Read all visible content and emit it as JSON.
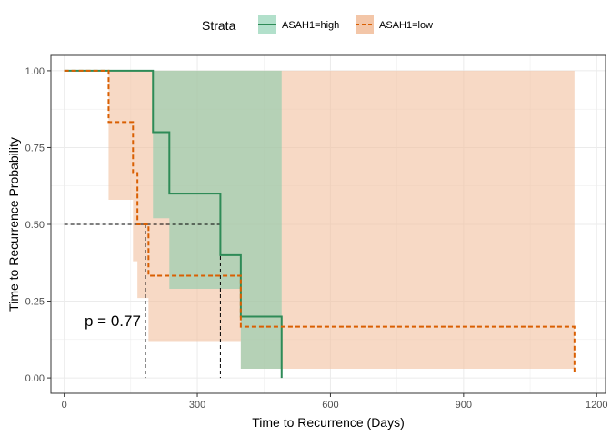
{
  "chart_data": {
    "type": "step",
    "xlabel": "Time to Recurrence (Days)",
    "ylabel": "Time to Recurrence Probability",
    "xlim": [
      -30,
      1220
    ],
    "ylim": [
      -0.05,
      1.05
    ],
    "xticks": [
      0,
      300,
      600,
      900,
      1200
    ],
    "yticks": [
      0.0,
      0.25,
      0.5,
      0.75,
      1.0
    ],
    "xtick_labels": [
      "0",
      "300",
      "600",
      "900",
      "1200"
    ],
    "ytick_labels": [
      "0.00",
      "0.25",
      "0.50",
      "0.75",
      "1.00"
    ],
    "grid": true,
    "legend": {
      "title": "Strata",
      "position": "top",
      "entries": [
        "ASAH1=high",
        "ASAH1=low"
      ]
    },
    "annotation": {
      "text": "p = 0.77",
      "x": 20,
      "y": 0.18
    },
    "median_lines": {
      "y": 0.5,
      "x_values": [
        183,
        352
      ]
    },
    "series": [
      {
        "name": "ASAH1=high",
        "color": "#2E8B57",
        "fill_color": "#7FCBA9",
        "dash": "solid",
        "x": [
          0,
          200,
          200,
          237,
          237,
          352,
          352,
          398,
          398,
          490,
          490
        ],
        "y": [
          1.0,
          1.0,
          0.8,
          0.8,
          0.6,
          0.6,
          0.4,
          0.4,
          0.2,
          0.2,
          0.0
        ],
        "ci_upper": [
          [
            0,
            1.0
          ],
          [
            200,
            1.0
          ],
          [
            490,
            1.0
          ]
        ],
        "ci_lower": [
          [
            0,
            1.0
          ],
          [
            200,
            1.0
          ],
          [
            200,
            0.52
          ],
          [
            237,
            0.52
          ],
          [
            237,
            0.29
          ],
          [
            398,
            0.29
          ],
          [
            398,
            0.03
          ],
          [
            490,
            0.03
          ]
        ]
      },
      {
        "name": "ASAH1=low",
        "color": "#D95F02",
        "fill_color": "#F2C09E",
        "dash": "dashed",
        "x": [
          0,
          100,
          100,
          155,
          155,
          165,
          165,
          190,
          190,
          398,
          398,
          1150,
          1150
        ],
        "y": [
          1.0,
          1.0,
          0.833,
          0.833,
          0.667,
          0.667,
          0.5,
          0.5,
          0.333,
          0.333,
          0.167,
          0.167,
          0.01
        ],
        "ci_upper": [
          [
            0,
            1.0
          ],
          [
            1150,
            1.0
          ]
        ],
        "ci_lower": [
          [
            0,
            1.0
          ],
          [
            100,
            1.0
          ],
          [
            100,
            0.58
          ],
          [
            155,
            0.58
          ],
          [
            155,
            0.38
          ],
          [
            165,
            0.38
          ],
          [
            165,
            0.26
          ],
          [
            190,
            0.26
          ],
          [
            190,
            0.12
          ],
          [
            398,
            0.12
          ],
          [
            398,
            0.03
          ],
          [
            1150,
            0.03
          ]
        ]
      }
    ]
  }
}
